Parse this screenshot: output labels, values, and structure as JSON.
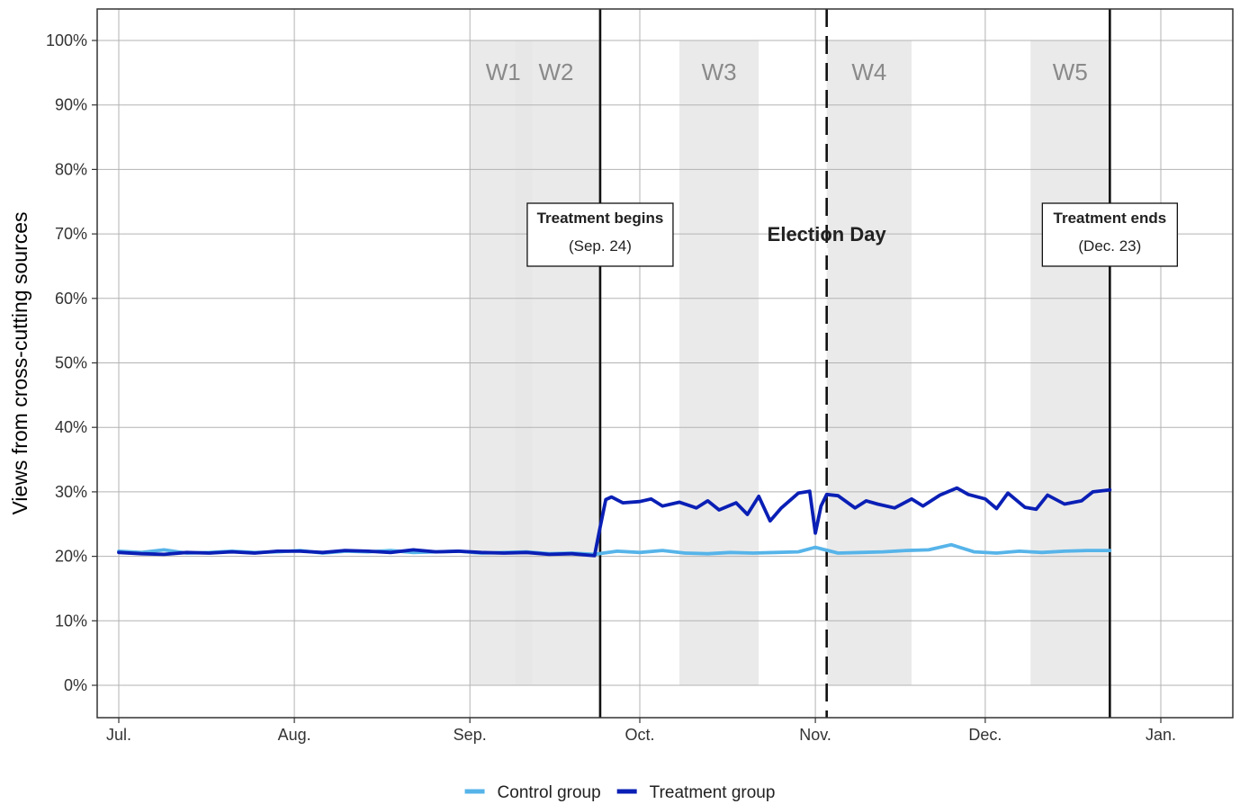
{
  "chart_data": {
    "type": "line",
    "ylabel": "Views from cross-cutting sources",
    "xlabel": "",
    "ylim": [
      0,
      100
    ],
    "y_ticks": [
      "0%",
      "10%",
      "20%",
      "30%",
      "40%",
      "50%",
      "60%",
      "70%",
      "80%",
      "90%",
      "100%"
    ],
    "x_tick_labels": [
      "Jul.",
      "Aug.",
      "Sep.",
      "Oct.",
      "Nov.",
      "Dec.",
      "Jan."
    ],
    "x_tick_dates": [
      "2020-07-01",
      "2020-08-01",
      "2020-09-01",
      "2020-10-01",
      "2020-11-01",
      "2020-12-01",
      "2021-01-01"
    ],
    "grid": true,
    "legend_position": "bottom",
    "waves": [
      {
        "label": "W1",
        "start": "2020-09-01",
        "end": "2020-09-12"
      },
      {
        "label": "W2",
        "start": "2020-09-09",
        "end": "2020-09-24"
      },
      {
        "label": "W3",
        "start": "2020-10-08",
        "end": "2020-10-22"
      },
      {
        "label": "W4",
        "start": "2020-11-03",
        "end": "2020-11-18"
      },
      {
        "label": "W5",
        "start": "2020-12-09",
        "end": "2020-12-23"
      }
    ],
    "events": [
      {
        "date": "2020-09-24",
        "style": "solid",
        "title": "Treatment begins",
        "subtitle": "(Sep. 24)"
      },
      {
        "date": "2020-11-03",
        "style": "dashed",
        "title": "Election Day",
        "subtitle": ""
      },
      {
        "date": "2020-12-23",
        "style": "solid",
        "title": "Treatment ends",
        "subtitle": "(Dec. 23)"
      }
    ],
    "series": [
      {
        "name": "Control group",
        "color": "#56b4e9",
        "x": [
          "2020-07-01",
          "2020-07-05",
          "2020-07-09",
          "2020-07-13",
          "2020-07-17",
          "2020-07-21",
          "2020-07-25",
          "2020-07-29",
          "2020-08-02",
          "2020-08-06",
          "2020-08-10",
          "2020-08-14",
          "2020-08-18",
          "2020-08-22",
          "2020-08-26",
          "2020-08-30",
          "2020-09-03",
          "2020-09-07",
          "2020-09-11",
          "2020-09-15",
          "2020-09-19",
          "2020-09-23",
          "2020-09-27",
          "2020-10-01",
          "2020-10-05",
          "2020-10-09",
          "2020-10-13",
          "2020-10-17",
          "2020-10-21",
          "2020-10-25",
          "2020-10-29",
          "2020-11-01",
          "2020-11-05",
          "2020-11-09",
          "2020-11-13",
          "2020-11-17",
          "2020-11-21",
          "2020-11-25",
          "2020-11-29",
          "2020-12-03",
          "2020-12-07",
          "2020-12-11",
          "2020-12-15",
          "2020-12-19",
          "2020-12-23"
        ],
        "y": [
          20.8,
          20.6,
          21.0,
          20.5,
          20.6,
          20.8,
          20.6,
          20.7,
          20.9,
          20.5,
          20.8,
          20.7,
          20.9,
          20.6,
          20.7,
          20.8,
          20.5,
          20.6,
          20.7,
          20.4,
          20.5,
          20.3,
          20.8,
          20.6,
          20.9,
          20.5,
          20.4,
          20.6,
          20.5,
          20.6,
          20.7,
          21.4,
          20.5,
          20.6,
          20.7,
          20.9,
          21.0,
          21.8,
          20.7,
          20.5,
          20.8,
          20.6,
          20.8,
          20.9,
          20.9
        ]
      },
      {
        "name": "Treatment group",
        "color": "#0a1fb5",
        "x": [
          "2020-07-01",
          "2020-07-05",
          "2020-07-09",
          "2020-07-13",
          "2020-07-17",
          "2020-07-21",
          "2020-07-25",
          "2020-07-29",
          "2020-08-02",
          "2020-08-06",
          "2020-08-10",
          "2020-08-14",
          "2020-08-18",
          "2020-08-22",
          "2020-08-26",
          "2020-08-30",
          "2020-09-03",
          "2020-09-07",
          "2020-09-11",
          "2020-09-15",
          "2020-09-19",
          "2020-09-23",
          "2020-09-24",
          "2020-09-25",
          "2020-09-26",
          "2020-09-28",
          "2020-10-01",
          "2020-10-03",
          "2020-10-05",
          "2020-10-08",
          "2020-10-11",
          "2020-10-13",
          "2020-10-15",
          "2020-10-18",
          "2020-10-20",
          "2020-10-22",
          "2020-10-24",
          "2020-10-26",
          "2020-10-29",
          "2020-10-31",
          "2020-11-01",
          "2020-11-02",
          "2020-11-03",
          "2020-11-05",
          "2020-11-08",
          "2020-11-10",
          "2020-11-12",
          "2020-11-15",
          "2020-11-18",
          "2020-11-20",
          "2020-11-23",
          "2020-11-26",
          "2020-11-28",
          "2020-12-01",
          "2020-12-03",
          "2020-12-05",
          "2020-12-08",
          "2020-12-10",
          "2020-12-12",
          "2020-12-15",
          "2020-12-18",
          "2020-12-20",
          "2020-12-23"
        ],
        "y": [
          20.6,
          20.4,
          20.3,
          20.6,
          20.5,
          20.7,
          20.5,
          20.8,
          20.8,
          20.6,
          20.9,
          20.8,
          20.6,
          21.0,
          20.7,
          20.8,
          20.6,
          20.5,
          20.6,
          20.3,
          20.4,
          20.1,
          24.5,
          28.8,
          29.2,
          28.3,
          28.5,
          28.9,
          27.8,
          28.4,
          27.5,
          28.6,
          27.2,
          28.3,
          26.5,
          29.3,
          25.5,
          27.5,
          29.8,
          30.1,
          23.6,
          27.8,
          29.6,
          29.4,
          27.5,
          28.6,
          28.1,
          27.5,
          28.9,
          27.8,
          29.5,
          30.6,
          29.6,
          28.9,
          27.4,
          29.8,
          27.6,
          27.3,
          29.5,
          28.1,
          28.6,
          30.0,
          30.3
        ]
      }
    ]
  }
}
